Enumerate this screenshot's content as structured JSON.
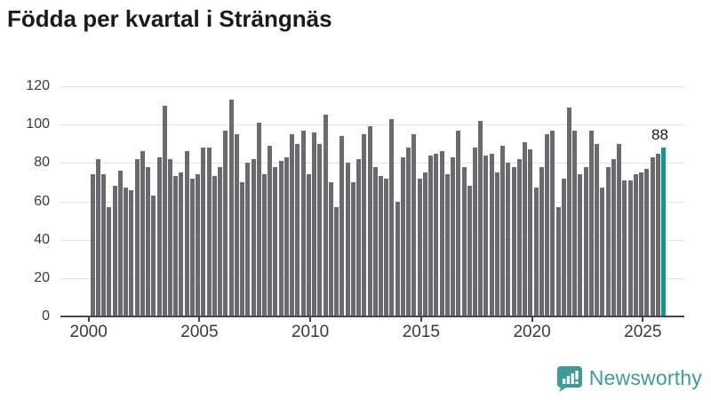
{
  "title": "Födda per kvartal i Strängnäs",
  "chart_data": {
    "type": "bar",
    "title": "Födda per kvartal i Strängnäs",
    "x_unit": "quarter",
    "start_year": 2000,
    "start_quarter": 1,
    "x_tick_labels": [
      "2000",
      "2005",
      "2010",
      "2015",
      "2020",
      "2025"
    ],
    "y_tick_labels": [
      "0",
      "20",
      "40",
      "60",
      "80",
      "100",
      "120"
    ],
    "y_ticks": [
      0,
      20,
      40,
      60,
      80,
      100,
      120
    ],
    "ylim": [
      0,
      120
    ],
    "grid": "horizontal",
    "legend": "none",
    "bar_color": "#6b6b6f",
    "highlight_color": "#12998e",
    "highlight_last_bar": true,
    "last_value_label": "88",
    "values": [
      74,
      82,
      74,
      57,
      68,
      76,
      67,
      66,
      82,
      86,
      78,
      63,
      83,
      110,
      82,
      73,
      75,
      86,
      72,
      74,
      88,
      88,
      73,
      78,
      97,
      113,
      95,
      70,
      80,
      82,
      101,
      74,
      89,
      78,
      81,
      83,
      95,
      90,
      97,
      74,
      96,
      90,
      105,
      70,
      57,
      94,
      80,
      70,
      82,
      95,
      99,
      78,
      73,
      72,
      103,
      60,
      83,
      88,
      95,
      72,
      75,
      84,
      85,
      86,
      74,
      83,
      97,
      78,
      68,
      88,
      102,
      84,
      85,
      75,
      89,
      80,
      78,
      82,
      91,
      87,
      67,
      78,
      95,
      97,
      57,
      72,
      109,
      97,
      74,
      78,
      97,
      90,
      67,
      78,
      82,
      90,
      71,
      71,
      74,
      75,
      77,
      83,
      85,
      88
    ]
  },
  "annotation": {
    "last_value": "88"
  },
  "footer": {
    "brand": "Newsworthy",
    "brand_color": "#3e9c95",
    "logo_icon": "newsworthy-speech-bubble-bar-chart-icon"
  }
}
